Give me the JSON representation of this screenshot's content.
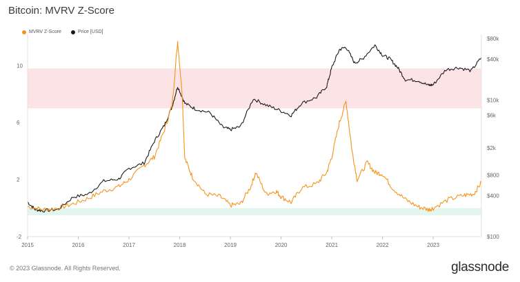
{
  "title": "Bitcoin: MVRV Z-Score",
  "footer": "© 2023 Glassnode. All Rights Reserved.",
  "brand": "glassnode",
  "colors": {
    "mvrv": "#f7931a",
    "price": "#1a1a1a",
    "red_zone": "#fbe3e6",
    "green_zone": "#e3f6ee"
  },
  "chart_data": {
    "type": "line",
    "title": "Bitcoin: MVRV Z-Score",
    "legend": [
      "MVRV Z-Score",
      "Price [USD]"
    ],
    "legend_position": "top-left",
    "x_ticks": [
      "2015",
      "2016",
      "2017",
      "2018",
      "2019",
      "2020",
      "2021",
      "2022",
      "2023"
    ],
    "y_left": {
      "ticks": [
        "-2",
        "2",
        "6",
        "10"
      ],
      "tick_values": [
        -2,
        2,
        6,
        10
      ],
      "range": [
        -2,
        11.9
      ]
    },
    "y_right": {
      "scale": "log",
      "ticks": [
        "$100",
        "$400",
        "$800",
        "$2k",
        "$6k",
        "$10k",
        "$40k",
        "$80k"
      ],
      "tick_values": [
        100,
        400,
        800,
        2000,
        6000,
        10000,
        40000,
        80000
      ],
      "range": [
        100,
        80000
      ]
    },
    "zones": [
      {
        "name": "red",
        "y_from": 7,
        "y_to": 9.8
      },
      {
        "name": "green",
        "y_from": -0.5,
        "y_to": 0.0
      }
    ],
    "series": [
      {
        "name": "MVRV Z-Score",
        "x": [
          2015.0,
          2015.3,
          2015.6,
          2015.9,
          2016.2,
          2016.5,
          2016.8,
          2017.0,
          2017.3,
          2017.5,
          2017.7,
          2017.85,
          2017.96,
          2018.05,
          2018.1,
          2018.25,
          2018.5,
          2018.8,
          2019.0,
          2019.2,
          2019.4,
          2019.5,
          2019.7,
          2019.9,
          2020.0,
          2020.2,
          2020.4,
          2020.7,
          2020.9,
          2021.0,
          2021.15,
          2021.28,
          2021.4,
          2021.5,
          2021.7,
          2021.85,
          2022.0,
          2022.2,
          2022.45,
          2022.7,
          2022.9,
          2023.0,
          2023.3,
          2023.6,
          2023.8,
          2023.95
        ],
        "y": [
          0.1,
          -0.1,
          0.0,
          0.3,
          0.7,
          1.2,
          1.5,
          2.0,
          3.0,
          3.6,
          5.5,
          7.2,
          11.7,
          8.0,
          3.5,
          2.2,
          1.0,
          0.8,
          0.2,
          0.3,
          1.5,
          2.5,
          1.0,
          1.2,
          0.8,
          0.4,
          1.4,
          1.7,
          2.5,
          3.6,
          6.0,
          7.5,
          4.0,
          2.0,
          3.2,
          2.5,
          2.4,
          1.4,
          0.6,
          0.1,
          -0.1,
          0.0,
          0.6,
          0.9,
          1.0,
          1.8
        ]
      },
      {
        "name": "Price [USD]",
        "x": [
          2015.0,
          2015.15,
          2015.3,
          2015.6,
          2015.9,
          2016.2,
          2016.5,
          2016.8,
          2017.0,
          2017.3,
          2017.5,
          2017.7,
          2017.85,
          2017.96,
          2018.1,
          2018.3,
          2018.6,
          2018.85,
          2019.0,
          2019.2,
          2019.45,
          2019.7,
          2019.95,
          2020.2,
          2020.4,
          2020.7,
          2020.9,
          2021.0,
          2021.15,
          2021.28,
          2021.45,
          2021.6,
          2021.85,
          2022.0,
          2022.15,
          2022.3,
          2022.45,
          2022.7,
          2022.9,
          2023.0,
          2023.25,
          2023.5,
          2023.75,
          2023.95
        ],
        "y": [
          320,
          250,
          240,
          250,
          380,
          420,
          650,
          700,
          1000,
          1200,
          2500,
          4300,
          8000,
          16000,
          9000,
          7500,
          6500,
          4000,
          3700,
          4100,
          10500,
          8500,
          7200,
          6000,
          9000,
          11000,
          16000,
          30000,
          55000,
          60000,
          35000,
          40000,
          64000,
          46000,
          40000,
          30000,
          20000,
          19500,
          16500,
          16800,
          28000,
          30000,
          27000,
          42000
        ]
      }
    ]
  }
}
